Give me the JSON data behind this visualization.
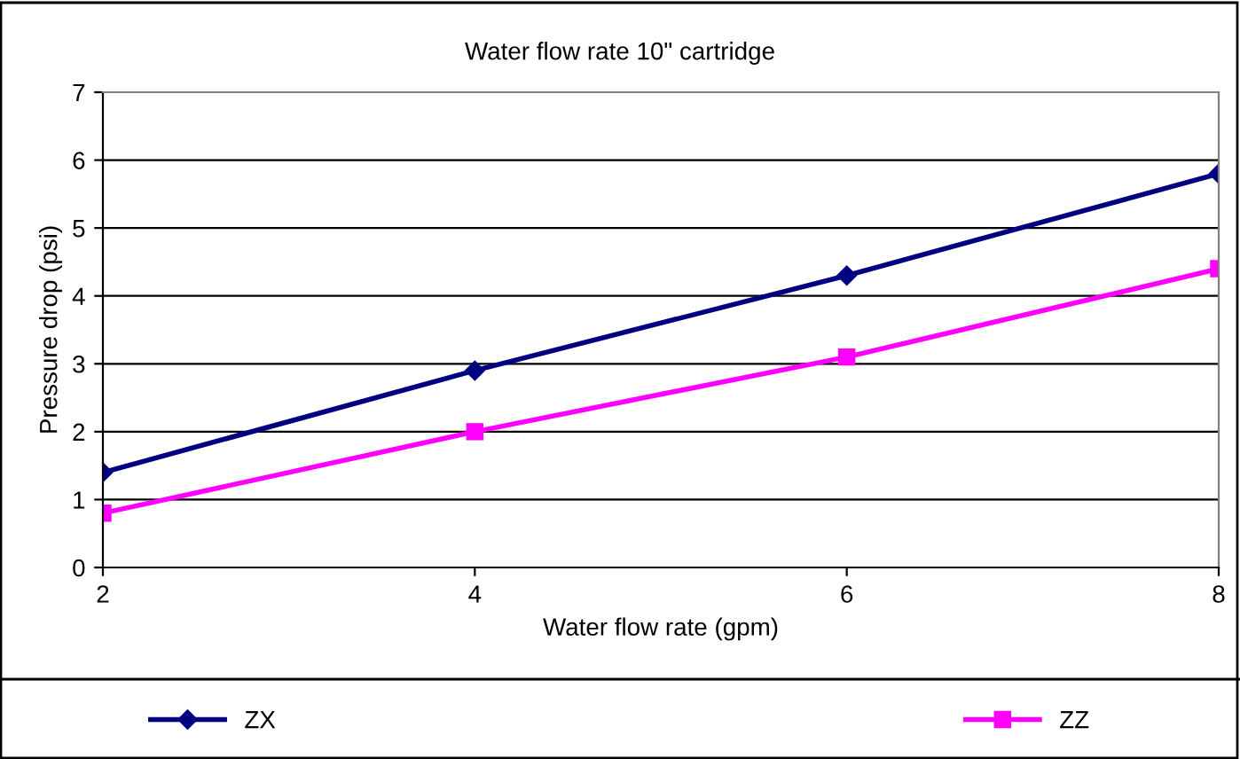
{
  "chart_data": {
    "type": "line",
    "title": "Water flow rate 10\" cartridge",
    "xlabel": "Water flow rate (gpm)",
    "ylabel": "Pressure drop (psi)",
    "x": [
      2,
      4,
      6,
      8
    ],
    "series": [
      {
        "name": "ZX",
        "color": "#000080",
        "values": [
          1.4,
          2.9,
          4.3,
          5.8
        ],
        "marker": "diamond"
      },
      {
        "name": "ZZ",
        "color": "#ff00ff",
        "values": [
          0.8,
          2.0,
          3.1,
          4.4
        ],
        "marker": "square"
      }
    ],
    "xlim": [
      2,
      8
    ],
    "xticks": [
      2,
      4,
      6,
      8
    ],
    "ylim": [
      0,
      7
    ],
    "yticks": [
      0,
      1,
      2,
      3,
      4,
      5,
      6,
      7
    ],
    "grid": "y",
    "legend": "bottom",
    "line_style": "solid"
  }
}
